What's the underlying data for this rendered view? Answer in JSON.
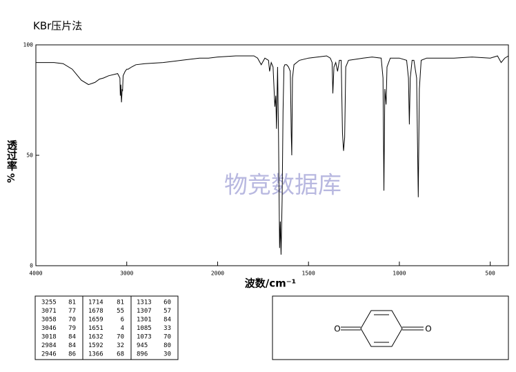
{
  "chart_data": {
    "type": "line",
    "title": "KBr压片法",
    "ylabel": "透过率",
    "ylabel_unit": "%",
    "xlabel": "波数/cm⁻¹",
    "watermark": "物竞数据库",
    "xlim": [
      4000,
      400
    ],
    "xbreak": 2000,
    "xticks": [
      4000,
      3000,
      2000,
      1500,
      1000,
      500
    ],
    "ylim": [
      0,
      100
    ],
    "yticks": [
      0,
      50,
      100
    ],
    "color": "#000000",
    "x": [
      4000,
      3800,
      3700,
      3600,
      3500,
      3420,
      3350,
      3300,
      3255,
      3200,
      3100,
      3075,
      3071,
      3065,
      3058,
      3050,
      3046,
      3040,
      3018,
      3000,
      2984,
      2946,
      2900,
      2800,
      2600,
      2400,
      2200,
      2100,
      2000,
      1900,
      1800,
      1780,
      1760,
      1740,
      1720,
      1714,
      1705,
      1695,
      1685,
      1680,
      1676,
      1670,
      1665,
      1659,
      1655,
      1651,
      1645,
      1640,
      1635,
      1630,
      1620,
      1610,
      1600,
      1595,
      1592,
      1588,
      1580,
      1550,
      1500,
      1450,
      1400,
      1380,
      1370,
      1366,
      1360,
      1350,
      1340,
      1330,
      1320,
      1313,
      1307,
      1301,
      1295,
      1280,
      1200,
      1150,
      1100,
      1090,
      1085,
      1080,
      1073,
      1068,
      1050,
      1000,
      960,
      950,
      945,
      940,
      930,
      920,
      905,
      896,
      890,
      880,
      850,
      700,
      600,
      500,
      460,
      440,
      420,
      400
    ],
    "values": [
      92,
      92,
      91.5,
      89,
      84,
      82,
      83,
      84.5,
      85,
      86,
      87,
      85,
      77,
      82,
      74,
      80,
      79,
      86,
      88,
      89,
      89,
      90,
      91,
      91.5,
      92,
      93,
      94,
      94,
      94.5,
      95,
      95,
      94,
      91,
      94,
      93,
      88,
      92,
      90,
      72,
      77,
      62,
      90,
      60,
      8,
      20,
      5,
      30,
      70,
      90,
      91,
      91,
      90,
      88,
      60,
      50,
      85,
      91,
      93,
      94,
      94.5,
      95,
      94,
      92,
      78,
      90,
      92,
      88,
      93,
      93,
      60,
      52,
      58,
      90,
      93,
      94,
      94.5,
      94,
      85,
      34,
      80,
      73,
      90,
      94,
      94,
      93,
      85,
      64,
      85,
      93,
      93,
      85,
      31,
      80,
      93,
      94,
      94,
      94.5,
      94,
      95,
      92,
      94,
      95
    ]
  },
  "peak_table": {
    "groups": [
      [
        [
          3255,
          81
        ],
        [
          3071,
          77
        ],
        [
          3058,
          70
        ],
        [
          3046,
          79
        ],
        [
          3018,
          84
        ],
        [
          2984,
          84
        ],
        [
          2946,
          86
        ]
      ],
      [
        [
          1714,
          81
        ],
        [
          1678,
          55
        ],
        [
          1659,
          6
        ],
        [
          1651,
          4
        ],
        [
          1632,
          70
        ],
        [
          1592,
          32
        ],
        [
          1366,
          68
        ]
      ],
      [
        [
          1313,
          60
        ],
        [
          1307,
          57
        ],
        [
          1301,
          84
        ],
        [
          1085,
          33
        ],
        [
          1073,
          70
        ],
        [
          945,
          80
        ],
        [
          896,
          30
        ]
      ]
    ]
  },
  "structure": {
    "atoms": [
      "O",
      "O"
    ]
  }
}
